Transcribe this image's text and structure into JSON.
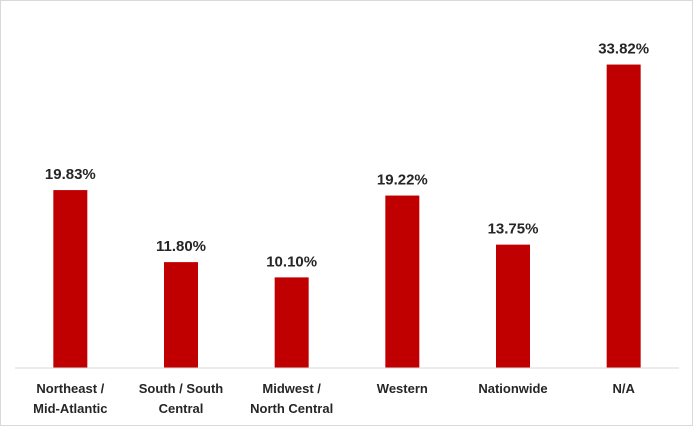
{
  "chart_data": {
    "type": "bar",
    "categories": [
      [
        "Northeast /",
        "Mid-Atlantic"
      ],
      [
        "South / South",
        "Central"
      ],
      [
        "Midwest /",
        "North Central"
      ],
      [
        "Western"
      ],
      [
        "Nationwide"
      ],
      [
        "N/A"
      ]
    ],
    "values": [
      19.83,
      11.8,
      10.1,
      19.22,
      13.75,
      33.82
    ],
    "value_labels": [
      "19.83%",
      "11.80%",
      "10.10%",
      "19.22%",
      "13.75%",
      "33.82%"
    ],
    "ylim": [
      0,
      36
    ],
    "grid": false,
    "legend": "none",
    "bar_color": "#c00000",
    "axis_color": "#d9d9d9"
  }
}
